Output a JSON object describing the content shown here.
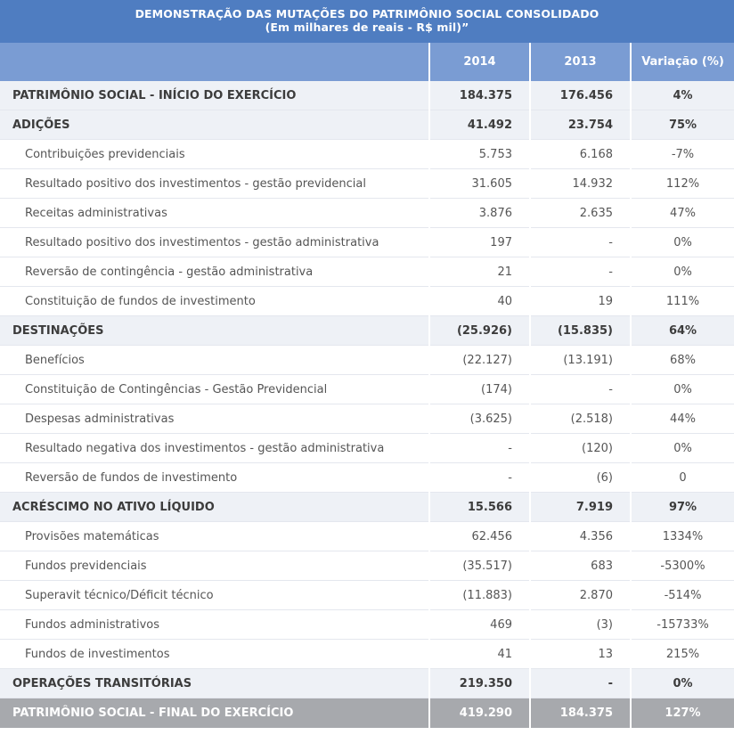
{
  "title": {
    "line1": "DEMONSTRAÇÃO DAS MUTAÇÕES DO PATRIMÔNIO SOCIAL CONSOLIDADO",
    "line2": "(Em milhares de reais - R$ mil)”"
  },
  "columns": {
    "y1": "2014",
    "y2": "2013",
    "var": "Variação (%)"
  },
  "rows": [
    {
      "label": "PATRIMÔNIO SOCIAL - INÍCIO DO EXERCÍCIO",
      "y1": "184.375",
      "y2": "176.456",
      "var": "4%"
    },
    {
      "label": "ADIÇÕES",
      "y1": "41.492",
      "y2": "23.754",
      "var": "75%"
    },
    {
      "label": "Contribuições previdenciais",
      "y1": "5.753",
      "y2": "6.168",
      "var": "-7%"
    },
    {
      "label": "Resultado positivo dos investimentos - gestão previdencial",
      "y1": "31.605",
      "y2": "14.932",
      "var": "112%"
    },
    {
      "label": "Receitas administrativas",
      "y1": "3.876",
      "y2": "2.635",
      "var": "47%"
    },
    {
      "label": "Resultado positivo dos investimentos - gestão administrativa",
      "y1": "197",
      "y2": "-",
      "var": "0%"
    },
    {
      "label": "Reversão de contingência - gestão administrativa",
      "y1": "21",
      "y2": "-",
      "var": "0%"
    },
    {
      "label": "Constituição de fundos de investimento",
      "y1": "40",
      "y2": "19",
      "var": "111%"
    },
    {
      "label": "DESTINAÇÕES",
      "y1": "(25.926)",
      "y2": "(15.835)",
      "var": "64%"
    },
    {
      "label": "Benefícios",
      "y1": "(22.127)",
      "y2": "(13.191)",
      "var": "68%"
    },
    {
      "label": "Constituição de Contingências - Gestão Previdencial",
      "y1": "(174)",
      "y2": "-",
      "var": "0%"
    },
    {
      "label": "Despesas administrativas",
      "y1": "(3.625)",
      "y2": "(2.518)",
      "var": "44%"
    },
    {
      "label": "Resultado negativa dos investimentos - gestão administrativa",
      "y1": "-",
      "y2": "(120)",
      "var": "0%"
    },
    {
      "label": "Reversão de fundos de investimento",
      "y1": "-",
      "y2": "(6)",
      "var": "0"
    },
    {
      "label": "ACRÉSCIMO NO ATIVO LÍQUIDO",
      "y1": "15.566",
      "y2": "7.919",
      "var": "97%"
    },
    {
      "label": "Provisões matemáticas",
      "y1": "62.456",
      "y2": "4.356",
      "var": "1334%"
    },
    {
      "label": "Fundos previdenciais",
      "y1": "(35.517)",
      "y2": "683",
      "var": "-5300%"
    },
    {
      "label": "Superavit técnico/Déficit técnico",
      "y1": "(11.883)",
      "y2": "2.870",
      "var": "-514%"
    },
    {
      "label": "Fundos administrativos",
      "y1": "469",
      "y2": "(3)",
      "var": "-15733%"
    },
    {
      "label": "Fundos de investimentos",
      "y1": "41",
      "y2": "13",
      "var": "215%"
    },
    {
      "label": "OPERAÇÕES TRANSITÓRIAS",
      "y1": "219.350",
      "y2": "-",
      "var": "0%"
    },
    {
      "label": "PATRIMÔNIO SOCIAL - FINAL DO EXERCÍCIO",
      "y1": "419.290",
      "y2": "184.375",
      "var": "127%"
    }
  ],
  "colors": {
    "title_bg": "#4f7dc1",
    "header_bg": "#7a9cd3",
    "section_bg": "#eef1f6",
    "final_bg": "#a7a9ad"
  }
}
